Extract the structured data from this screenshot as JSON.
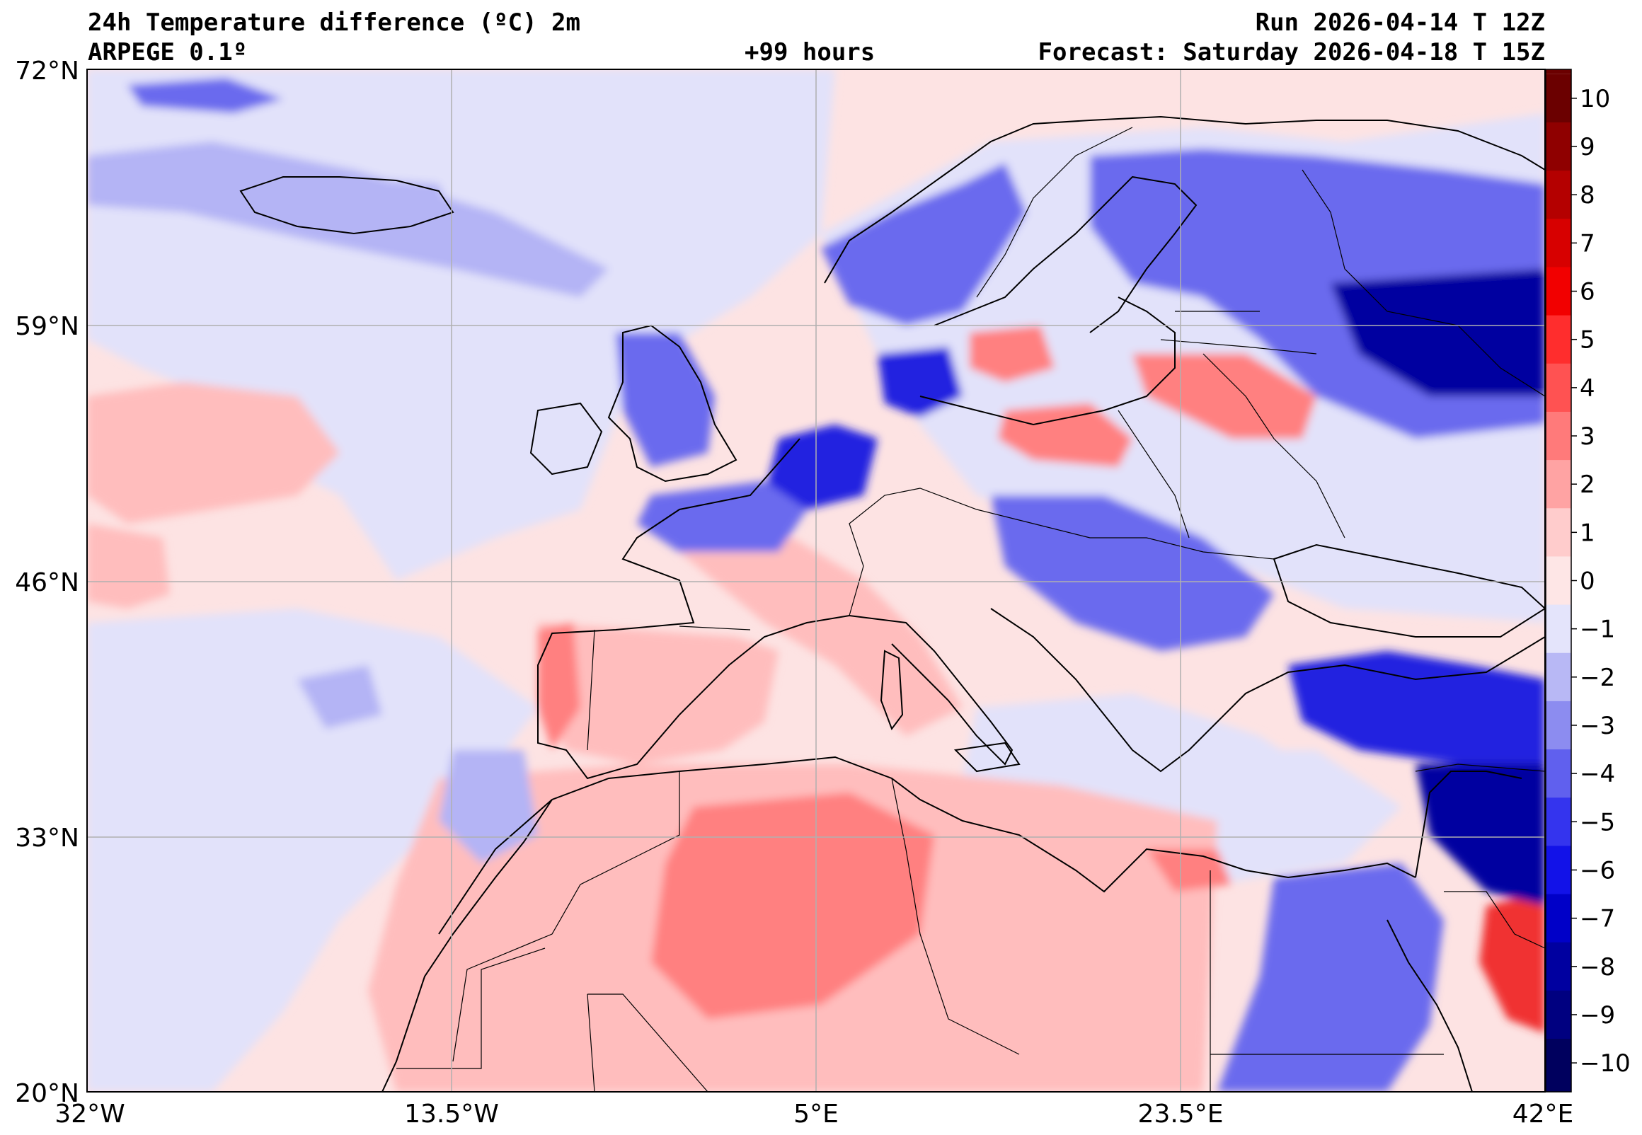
{
  "header": {
    "title_left": "24h Temperature difference (ºC) 2m",
    "model": "ARPEGE 0.1º",
    "lead": "+99 hours",
    "run": "Run 2026-04-14 T 12Z",
    "forecast": "Forecast: Saturday 2026-04-18 T 15Z"
  },
  "axes": {
    "lat_labels": [
      "72°N",
      "59°N",
      "46°N",
      "33°N",
      "20°N"
    ],
    "lon_labels": [
      "32°W",
      "13.5°W",
      "5°E",
      "23.5°E",
      "42°E"
    ]
  },
  "colorbar": {
    "labels": [
      "10",
      "9",
      "8",
      "7",
      "6",
      "5",
      "4",
      "3",
      "2",
      "1",
      "0",
      "−1",
      "−2",
      "−3",
      "−4",
      "−5",
      "−6",
      "−7",
      "−8",
      "−9",
      "−10"
    ],
    "colors": [
      "#6b0000",
      "#8f0000",
      "#b40000",
      "#d70000",
      "#f20000",
      "#ff2d2d",
      "#ff5252",
      "#ff7a7a",
      "#ffa3a3",
      "#ffcccc",
      "#fee6e6",
      "#e4e4fb",
      "#b8b8f5",
      "#8c8cf0",
      "#6060ee",
      "#3434ee",
      "#1212e8",
      "#0000c8",
      "#0000a0",
      "#000080",
      "#00005e"
    ]
  },
  "map_colors": {
    "ocean_warm": "#fde3e3",
    "ocean_cool": "#e2e2fa",
    "warm1": "#ffbdbd",
    "warm2": "#ff8080",
    "warm3": "#f03030",
    "cool1": "#b4b4f5",
    "cool2": "#6a6aee",
    "cool3": "#2020e0",
    "cool4": "#0000a0"
  }
}
